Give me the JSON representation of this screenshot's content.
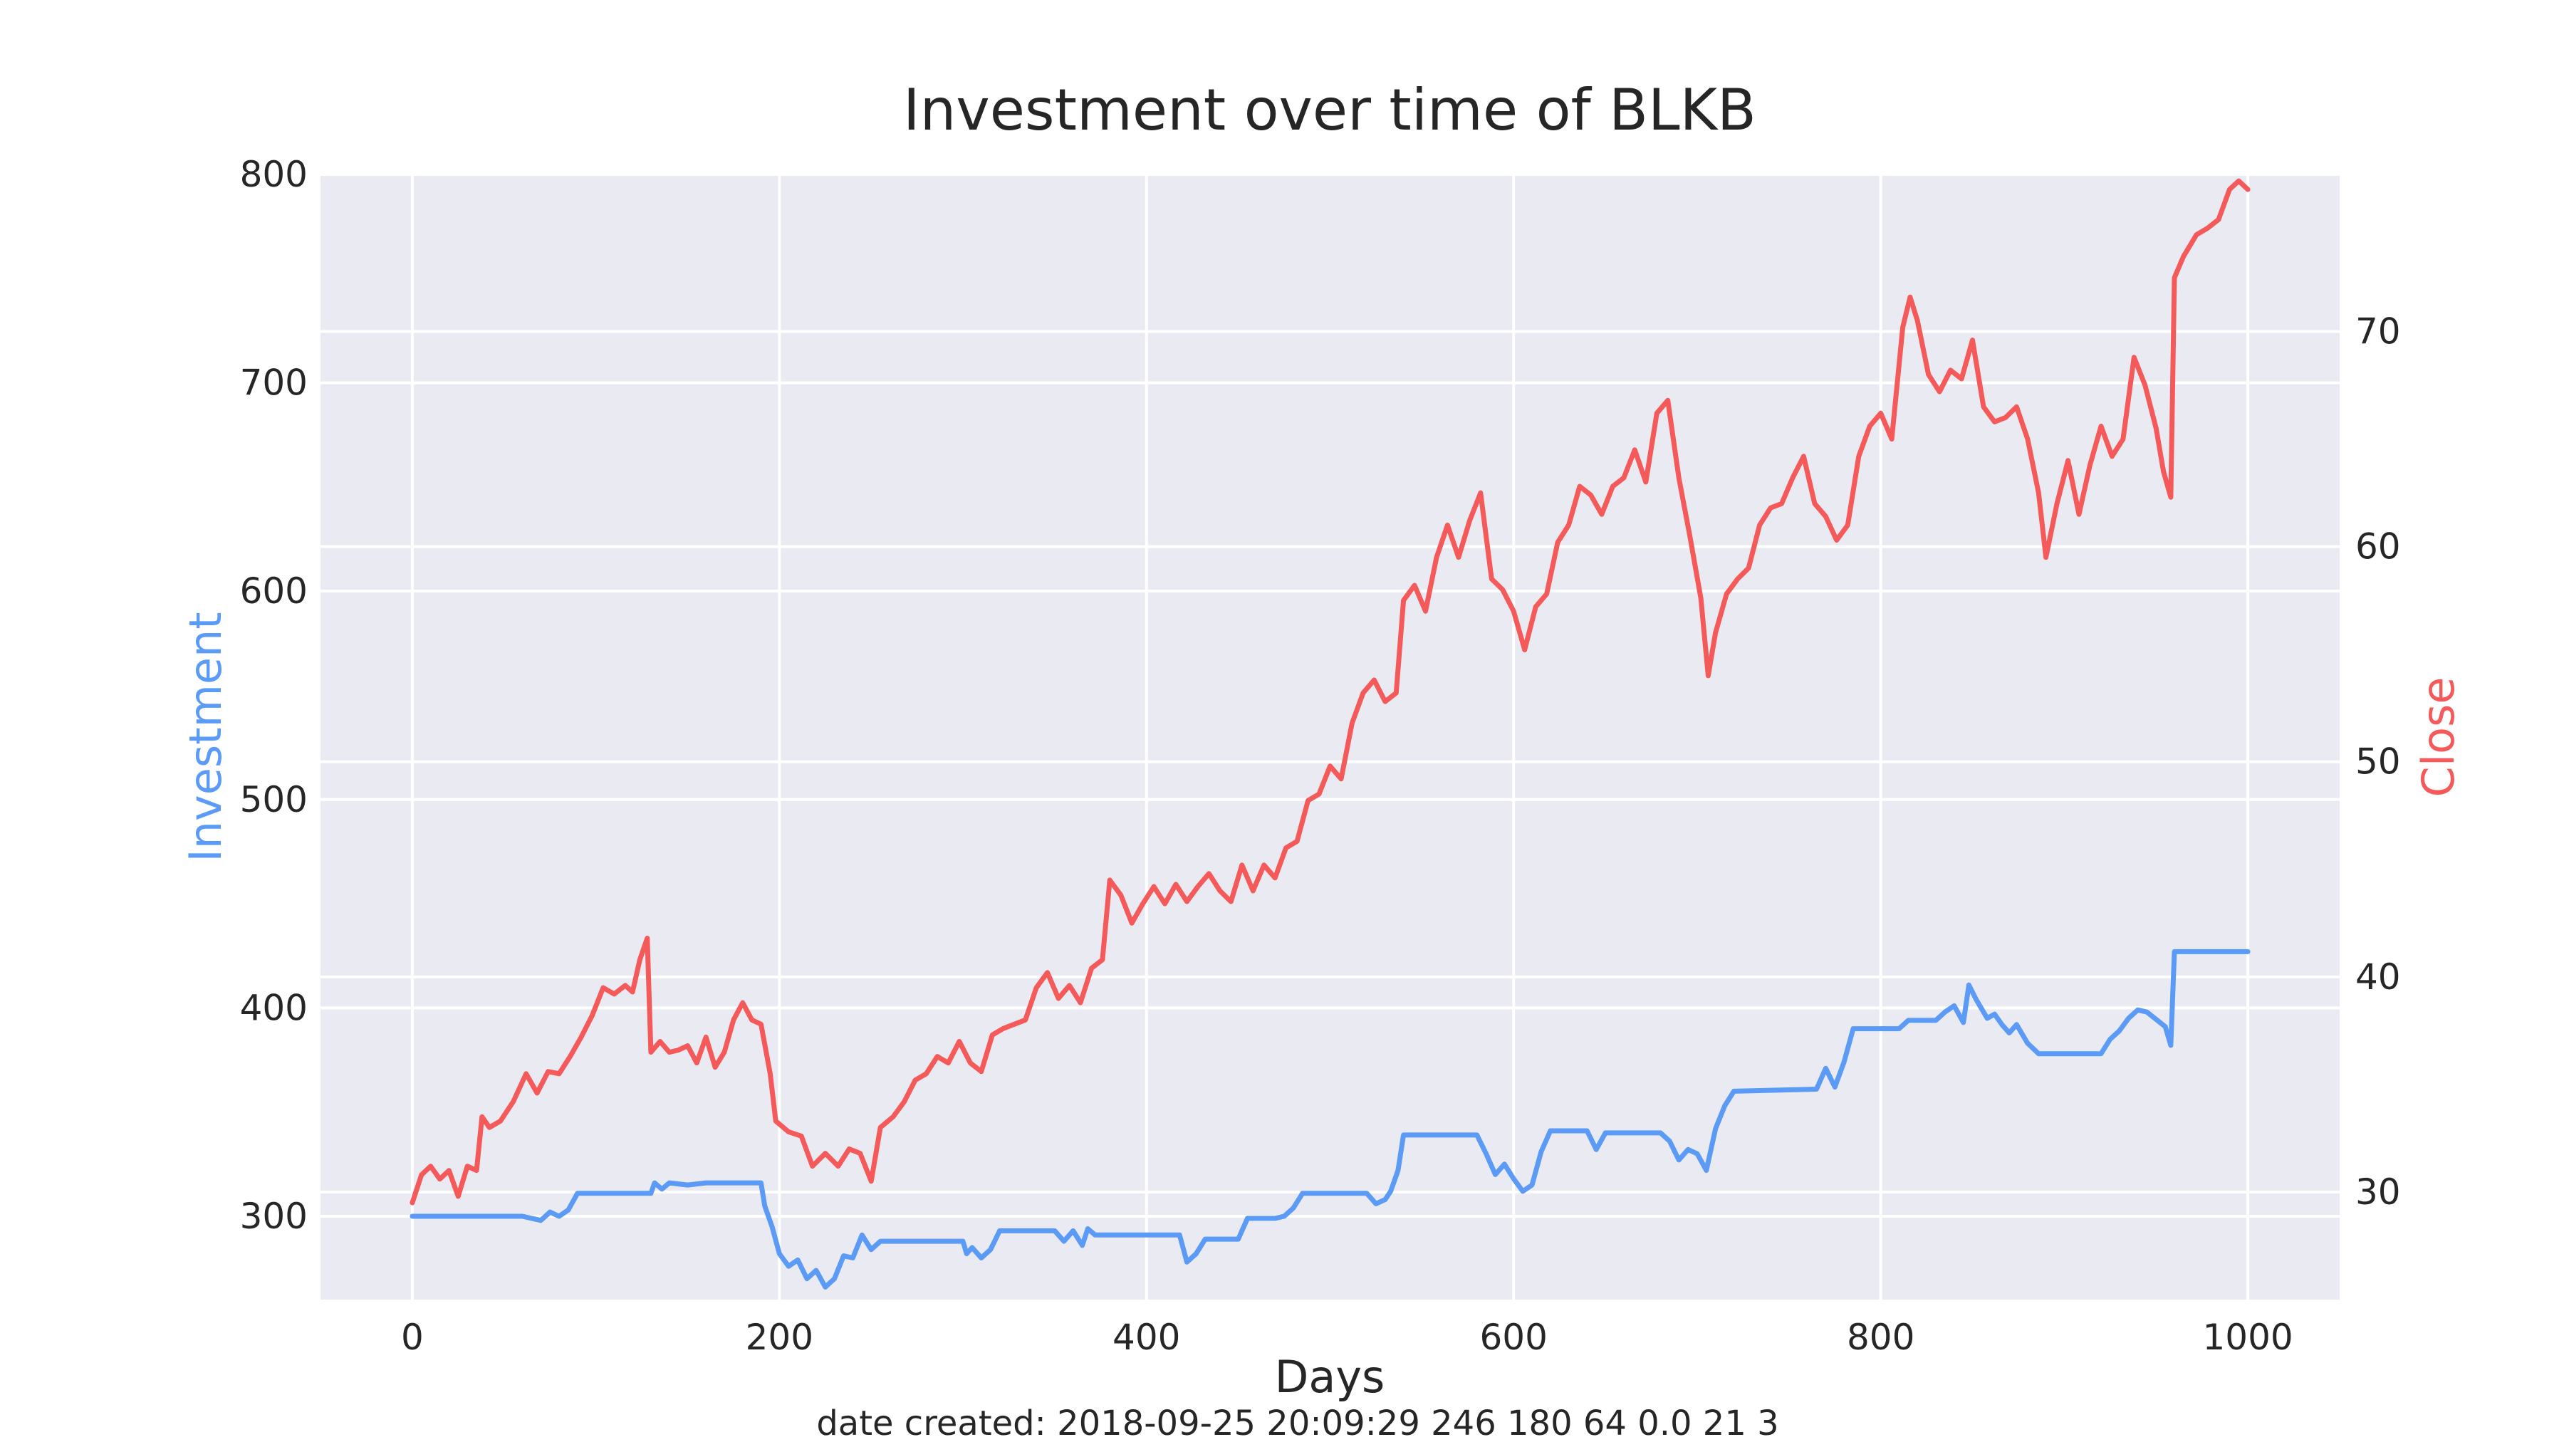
{
  "chart_data": {
    "type": "line",
    "title": "Investment over time of BLKB",
    "xlabel": "Days",
    "ylabel_left": "Investment",
    "ylabel_right": "Close",
    "footer": "date created: 2018-09-25 20:09:29 246 180 64 0.0 21 3",
    "xlim": [
      -50,
      1050
    ],
    "ylim_left": [
      260,
      800
    ],
    "ylim_right": [
      25.0,
      77.3
    ],
    "x_ticks": [
      0,
      200,
      400,
      600,
      800,
      1000
    ],
    "y_ticks_left": [
      300,
      400,
      500,
      600,
      700,
      800
    ],
    "y_ticks_right": [
      30,
      40,
      50,
      60,
      70
    ],
    "grid": true,
    "series": [
      {
        "name": "Investment",
        "axis": "left",
        "color": "#5b9bf5",
        "points": [
          [
            0,
            300
          ],
          [
            60,
            300
          ],
          [
            70,
            298
          ],
          [
            75,
            302
          ],
          [
            80,
            300
          ],
          [
            85,
            303
          ],
          [
            90,
            311
          ],
          [
            130,
            311
          ],
          [
            132,
            316
          ],
          [
            136,
            313
          ],
          [
            140,
            316
          ],
          [
            150,
            315
          ],
          [
            160,
            316
          ],
          [
            170,
            316
          ],
          [
            190,
            316
          ],
          [
            192,
            305
          ],
          [
            196,
            295
          ],
          [
            200,
            282
          ],
          [
            205,
            276
          ],
          [
            210,
            279
          ],
          [
            215,
            270
          ],
          [
            220,
            274
          ],
          [
            225,
            266
          ],
          [
            230,
            270
          ],
          [
            235,
            281
          ],
          [
            240,
            280
          ],
          [
            245,
            291
          ],
          [
            250,
            284
          ],
          [
            255,
            288
          ],
          [
            280,
            288
          ],
          [
            300,
            288
          ],
          [
            302,
            282
          ],
          [
            305,
            285
          ],
          [
            310,
            280
          ],
          [
            315,
            284
          ],
          [
            320,
            293
          ],
          [
            350,
            293
          ],
          [
            355,
            288
          ],
          [
            360,
            293
          ],
          [
            365,
            286
          ],
          [
            368,
            294
          ],
          [
            372,
            291
          ],
          [
            375,
            291
          ],
          [
            410,
            291
          ],
          [
            418,
            291
          ],
          [
            422,
            278
          ],
          [
            427,
            282
          ],
          [
            432,
            289
          ],
          [
            438,
            289
          ],
          [
            450,
            289
          ],
          [
            455,
            299
          ],
          [
            470,
            299
          ],
          [
            475,
            300
          ],
          [
            480,
            304
          ],
          [
            485,
            311
          ],
          [
            520,
            311
          ],
          [
            525,
            306
          ],
          [
            530,
            308
          ],
          [
            533,
            312
          ],
          [
            537,
            322
          ],
          [
            540,
            339
          ],
          [
            580,
            339
          ],
          [
            585,
            330
          ],
          [
            590,
            320
          ],
          [
            595,
            325
          ],
          [
            600,
            318
          ],
          [
            605,
            312
          ],
          [
            610,
            315
          ],
          [
            615,
            331
          ],
          [
            620,
            341
          ],
          [
            640,
            341
          ],
          [
            645,
            332
          ],
          [
            650,
            340
          ],
          [
            680,
            340
          ],
          [
            685,
            336
          ],
          [
            690,
            327
          ],
          [
            695,
            332
          ],
          [
            700,
            330
          ],
          [
            705,
            322
          ],
          [
            710,
            342
          ],
          [
            715,
            353
          ],
          [
            720,
            360
          ],
          [
            765,
            361
          ],
          [
            770,
            371
          ],
          [
            775,
            362
          ],
          [
            780,
            374
          ],
          [
            785,
            390
          ],
          [
            810,
            390
          ],
          [
            815,
            394
          ],
          [
            830,
            394
          ],
          [
            835,
            398
          ],
          [
            840,
            401
          ],
          [
            845,
            393
          ],
          [
            848,
            411
          ],
          [
            852,
            404
          ],
          [
            858,
            395
          ],
          [
            862,
            397
          ],
          [
            866,
            392
          ],
          [
            870,
            388
          ],
          [
            874,
            392
          ],
          [
            880,
            383
          ],
          [
            886,
            378
          ],
          [
            920,
            378
          ],
          [
            925,
            385
          ],
          [
            930,
            389
          ],
          [
            935,
            395
          ],
          [
            940,
            399
          ],
          [
            945,
            398
          ],
          [
            955,
            391
          ],
          [
            958,
            382
          ],
          [
            960,
            427
          ],
          [
            1000,
            427
          ]
        ]
      },
      {
        "name": "Close",
        "axis": "right",
        "color": "#f55a5a",
        "points": [
          [
            0,
            29.5
          ],
          [
            5,
            30.8
          ],
          [
            10,
            31.2
          ],
          [
            15,
            30.6
          ],
          [
            20,
            31.0
          ],
          [
            25,
            29.8
          ],
          [
            30,
            31.2
          ],
          [
            35,
            31.0
          ],
          [
            38,
            33.5
          ],
          [
            42,
            33.0
          ],
          [
            48,
            33.3
          ],
          [
            55,
            34.2
          ],
          [
            62,
            35.5
          ],
          [
            68,
            34.6
          ],
          [
            74,
            35.6
          ],
          [
            80,
            35.5
          ],
          [
            86,
            36.3
          ],
          [
            92,
            37.2
          ],
          [
            98,
            38.2
          ],
          [
            104,
            39.5
          ],
          [
            110,
            39.2
          ],
          [
            116,
            39.6
          ],
          [
            120,
            39.3
          ],
          [
            124,
            40.8
          ],
          [
            128,
            41.8
          ],
          [
            130,
            36.5
          ],
          [
            135,
            37.0
          ],
          [
            140,
            36.5
          ],
          [
            145,
            36.6
          ],
          [
            150,
            36.8
          ],
          [
            155,
            36.0
          ],
          [
            160,
            37.2
          ],
          [
            165,
            35.8
          ],
          [
            170,
            36.5
          ],
          [
            175,
            38.0
          ],
          [
            180,
            38.8
          ],
          [
            185,
            38.0
          ],
          [
            190,
            37.8
          ],
          [
            195,
            35.5
          ],
          [
            198,
            33.3
          ],
          [
            205,
            32.8
          ],
          [
            212,
            32.6
          ],
          [
            218,
            31.2
          ],
          [
            225,
            31.8
          ],
          [
            232,
            31.2
          ],
          [
            238,
            32.0
          ],
          [
            244,
            31.8
          ],
          [
            250,
            30.5
          ],
          [
            255,
            33.0
          ],
          [
            262,
            33.5
          ],
          [
            268,
            34.2
          ],
          [
            274,
            35.2
          ],
          [
            280,
            35.5
          ],
          [
            286,
            36.3
          ],
          [
            292,
            36.0
          ],
          [
            298,
            37.0
          ],
          [
            304,
            36.0
          ],
          [
            310,
            35.6
          ],
          [
            316,
            37.3
          ],
          [
            322,
            37.6
          ],
          [
            328,
            37.8
          ],
          [
            334,
            38.0
          ],
          [
            340,
            39.5
          ],
          [
            346,
            40.2
          ],
          [
            352,
            39.0
          ],
          [
            358,
            39.6
          ],
          [
            364,
            38.8
          ],
          [
            370,
            40.4
          ],
          [
            376,
            40.8
          ],
          [
            380,
            44.5
          ],
          [
            386,
            43.8
          ],
          [
            392,
            42.5
          ],
          [
            398,
            43.4
          ],
          [
            404,
            44.2
          ],
          [
            410,
            43.4
          ],
          [
            416,
            44.3
          ],
          [
            422,
            43.5
          ],
          [
            428,
            44.2
          ],
          [
            434,
            44.8
          ],
          [
            440,
            44.0
          ],
          [
            446,
            43.5
          ],
          [
            452,
            45.2
          ],
          [
            458,
            44.0
          ],
          [
            464,
            45.2
          ],
          [
            470,
            44.6
          ],
          [
            476,
            46.0
          ],
          [
            482,
            46.3
          ],
          [
            488,
            48.2
          ],
          [
            494,
            48.5
          ],
          [
            500,
            49.8
          ],
          [
            506,
            49.2
          ],
          [
            512,
            51.8
          ],
          [
            518,
            53.2
          ],
          [
            524,
            53.8
          ],
          [
            530,
            52.8
          ],
          [
            536,
            53.2
          ],
          [
            540,
            57.5
          ],
          [
            546,
            58.2
          ],
          [
            552,
            57.0
          ],
          [
            558,
            59.5
          ],
          [
            564,
            61.0
          ],
          [
            570,
            59.5
          ],
          [
            576,
            61.2
          ],
          [
            582,
            62.5
          ],
          [
            588,
            58.5
          ],
          [
            594,
            58.0
          ],
          [
            600,
            57.0
          ],
          [
            606,
            55.2
          ],
          [
            612,
            57.2
          ],
          [
            618,
            57.8
          ],
          [
            624,
            60.2
          ],
          [
            630,
            61.0
          ],
          [
            636,
            62.8
          ],
          [
            642,
            62.4
          ],
          [
            648,
            61.5
          ],
          [
            654,
            62.8
          ],
          [
            660,
            63.2
          ],
          [
            666,
            64.5
          ],
          [
            672,
            63.0
          ],
          [
            678,
            66.2
          ],
          [
            684,
            66.8
          ],
          [
            690,
            63.2
          ],
          [
            696,
            60.5
          ],
          [
            702,
            57.6
          ],
          [
            706,
            54.0
          ],
          [
            710,
            56.0
          ],
          [
            716,
            57.8
          ],
          [
            722,
            58.5
          ],
          [
            728,
            59.0
          ],
          [
            734,
            61.0
          ],
          [
            740,
            61.8
          ],
          [
            746,
            62.0
          ],
          [
            752,
            63.2
          ],
          [
            758,
            64.2
          ],
          [
            764,
            62.0
          ],
          [
            770,
            61.4
          ],
          [
            776,
            60.3
          ],
          [
            782,
            61.0
          ],
          [
            788,
            64.2
          ],
          [
            794,
            65.6
          ],
          [
            800,
            66.2
          ],
          [
            806,
            65.0
          ],
          [
            812,
            70.2
          ],
          [
            816,
            71.6
          ],
          [
            820,
            70.5
          ],
          [
            826,
            68.0
          ],
          [
            832,
            67.2
          ],
          [
            838,
            68.2
          ],
          [
            844,
            67.8
          ],
          [
            850,
            69.6
          ],
          [
            856,
            66.5
          ],
          [
            862,
            65.8
          ],
          [
            868,
            66.0
          ],
          [
            874,
            66.5
          ],
          [
            880,
            65.0
          ],
          [
            886,
            62.5
          ],
          [
            890,
            59.5
          ],
          [
            896,
            62.0
          ],
          [
            902,
            64.0
          ],
          [
            908,
            61.5
          ],
          [
            914,
            63.8
          ],
          [
            920,
            65.6
          ],
          [
            926,
            64.2
          ],
          [
            932,
            65.0
          ],
          [
            938,
            68.8
          ],
          [
            944,
            67.5
          ],
          [
            950,
            65.5
          ],
          [
            954,
            63.5
          ],
          [
            958,
            62.3
          ],
          [
            960,
            72.5
          ],
          [
            965,
            73.5
          ],
          [
            972,
            74.5
          ],
          [
            978,
            74.8
          ],
          [
            984,
            75.2
          ],
          [
            990,
            76.6
          ],
          [
            995,
            77.0
          ],
          [
            1000,
            76.6
          ]
        ]
      }
    ]
  }
}
